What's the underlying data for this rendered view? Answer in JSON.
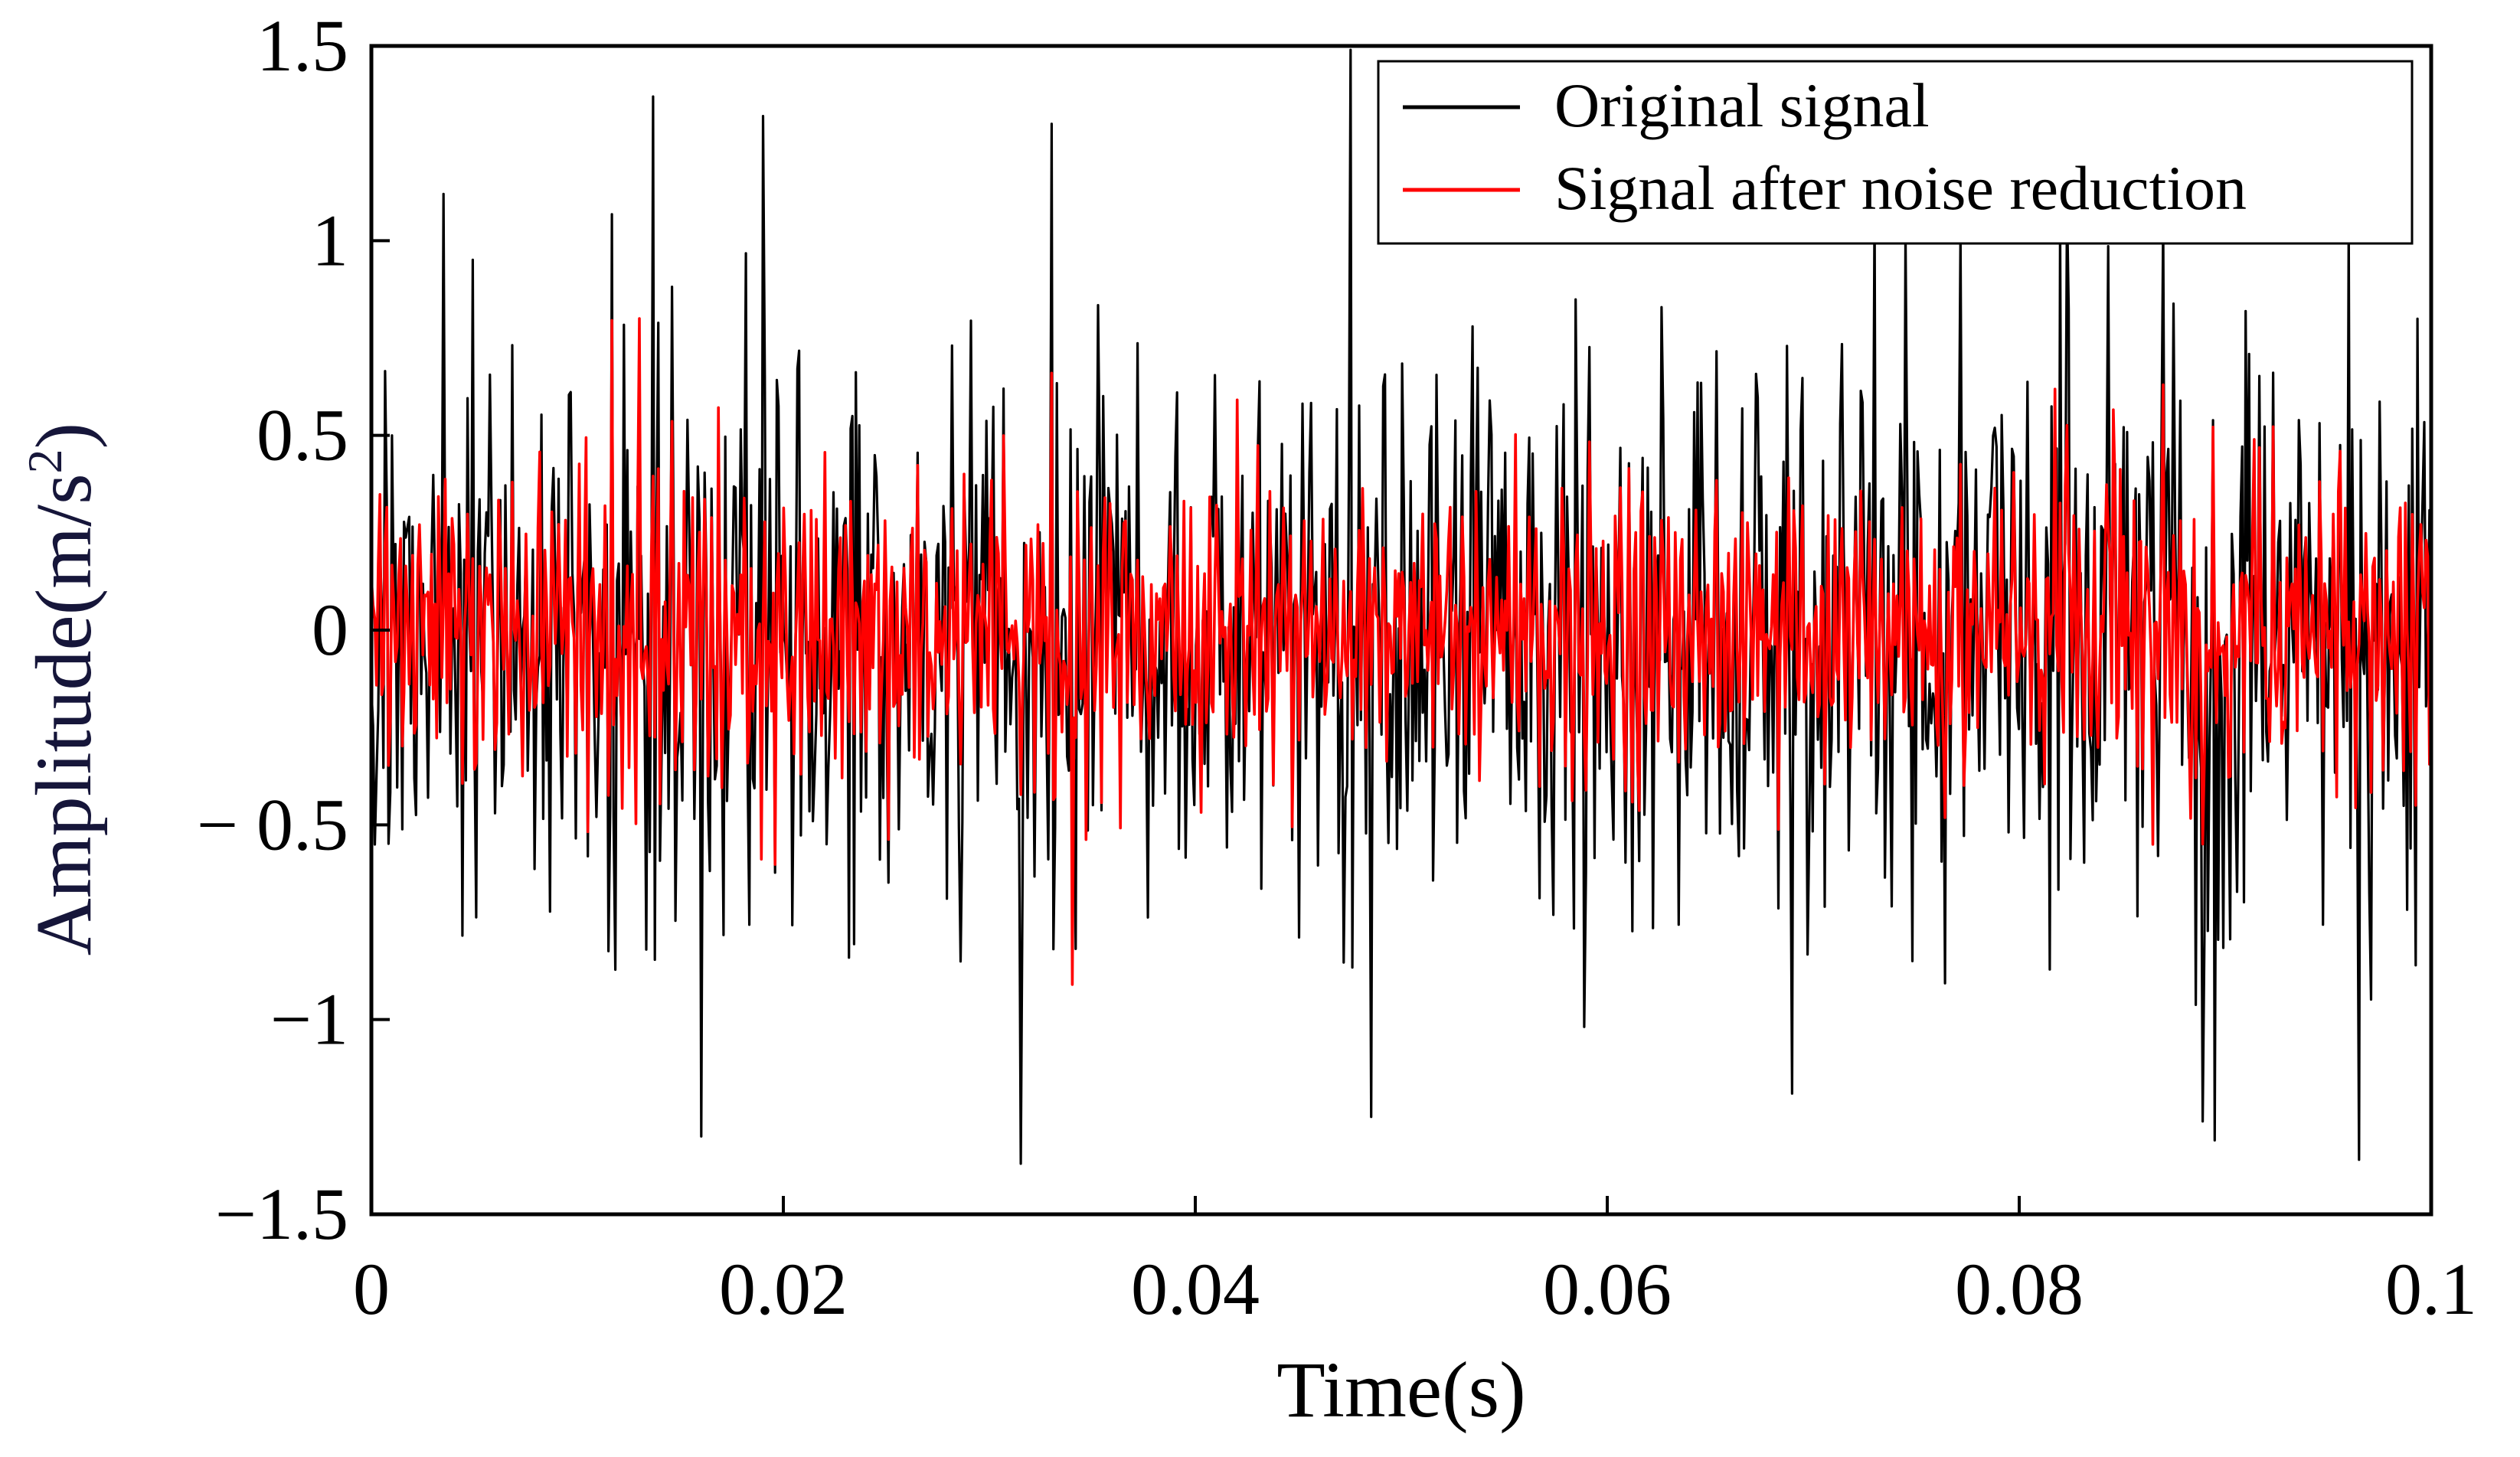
{
  "chart_data": {
    "type": "line",
    "xlabel": "Time(s)",
    "ylabel_main": "Amplitude(m/s",
    "ylabel_sup": "2",
    "ylabel_close": ")",
    "xlim": [
      0,
      0.1
    ],
    "ylim": [
      -1.5,
      1.5
    ],
    "x_ticks": [
      0,
      0.02,
      0.04,
      0.06,
      0.08,
      0.1
    ],
    "x_tick_labels": [
      "0",
      "0.02",
      "0.04",
      "0.06",
      "0.08",
      "0.1"
    ],
    "y_ticks": [
      1.5,
      1,
      0.5,
      0,
      -0.5,
      -1,
      -1.5
    ],
    "y_tick_labels": [
      "1.5",
      "1",
      "0.5",
      "0",
      "− 0.5",
      "−1",
      "−1.5"
    ],
    "grid": false,
    "legend_position": "top-right",
    "colors": {
      "original": "#000000",
      "denoised": "#ff0000",
      "ylabel": "#16163a"
    },
    "series": [
      {
        "name": "Original signal",
        "color": "#000000",
        "description": "high-frequency vibration signal, mostly within ±0.8 with peaks up to about ±1.4",
        "peaks": [
          {
            "x": 0.0035,
            "y": 1.12
          },
          {
            "x": 0.0137,
            "y": 1.37
          },
          {
            "x": 0.016,
            "y": -1.3
          },
          {
            "x": 0.019,
            "y": 1.32
          },
          {
            "x": 0.0315,
            "y": -1.37
          },
          {
            "x": 0.033,
            "y": 1.3
          },
          {
            "x": 0.0475,
            "y": 1.49
          },
          {
            "x": 0.0485,
            "y": -1.25
          },
          {
            "x": 0.069,
            "y": -1.19
          },
          {
            "x": 0.0745,
            "y": 1.02
          },
          {
            "x": 0.087,
            "y": 1.05
          },
          {
            "x": 0.0895,
            "y": -1.31
          },
          {
            "x": 0.096,
            "y": 1.04
          },
          {
            "x": 0.0965,
            "y": -1.36
          }
        ]
      },
      {
        "name": "Signal after noise reduction",
        "color": "#ff0000",
        "description": "denoised signal, mostly within about ±0.6",
        "peaks": [
          {
            "x": 0.013,
            "y": 0.8
          },
          {
            "x": 0.034,
            "y": -0.91
          },
          {
            "x": 0.033,
            "y": 0.66
          },
          {
            "x": 0.087,
            "y": 0.63
          },
          {
            "x": 0.0865,
            "y": -0.55
          }
        ]
      }
    ]
  }
}
